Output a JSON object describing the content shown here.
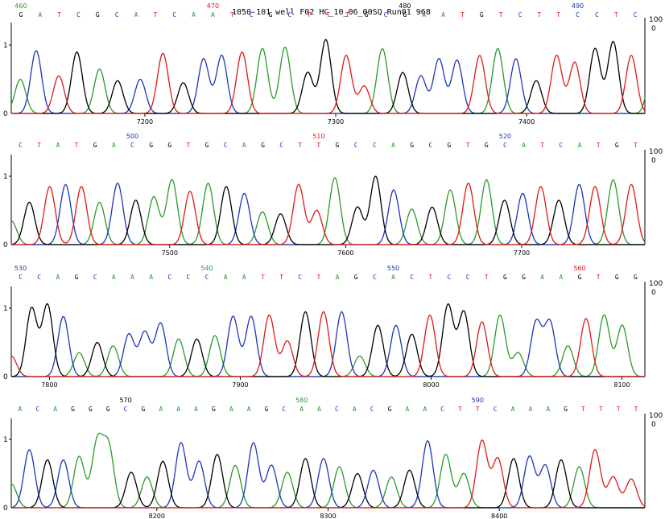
{
  "title": "1050-101 well F02 HC_10_06_00SQ Run01 968",
  "colors": {
    "A": "#2a9a2a",
    "C": "#1c36b8",
    "G": "#000000",
    "T": "#e01818"
  },
  "chart_data": {
    "type": "line",
    "title": "1050-101 well F02 HC_10_06_00SQ Run01 968",
    "series_names": [
      "A",
      "C",
      "G",
      "T"
    ],
    "left_axis_ticks": [
      "0",
      "1"
    ],
    "right_axis_ticks": [
      "0",
      "100"
    ],
    "panels": [
      {
        "sequence": "GATCGCATCAATCGCTTTGCGAATGTCTTCCTC",
        "position_labels": [
          {
            "value": "460",
            "base_index": 0,
            "color": "#2a9a2a"
          },
          {
            "value": "470",
            "base_index": 10,
            "color": "#e01818"
          },
          {
            "value": "480",
            "base_index": 20,
            "color": "#000000"
          },
          {
            "value": "490",
            "base_index": 29,
            "color": "#1c36b8"
          }
        ],
        "scan_range": [
          7130,
          7462
        ],
        "scan_ticks": [
          7200,
          7300,
          7400
        ],
        "peaks": [
          {
            "b": "A",
            "h": 0.5,
            "x": 0.02
          },
          {
            "b": "C",
            "h": 0.92,
            "x": 0.055
          },
          {
            "b": "T",
            "h": 0.55,
            "x": 0.105
          },
          {
            "b": "G",
            "h": 0.9,
            "x": 0.145
          },
          {
            "b": "A",
            "h": 0.65,
            "x": 0.195
          },
          {
            "b": "G",
            "h": 0.48,
            "x": 0.235
          },
          {
            "b": "C",
            "h": 0.5,
            "x": 0.285
          },
          {
            "b": "T",
            "h": 0.88,
            "x": 0.335
          },
          {
            "b": "G",
            "h": 0.45,
            "x": 0.38
          },
          {
            "b": "C",
            "h": 0.8,
            "x": 0.425
          },
          {
            "b": "C",
            "h": 0.85,
            "x": 0.465
          },
          {
            "b": "T",
            "h": 0.9,
            "x": 0.51
          },
          {
            "b": "A",
            "h": 0.95,
            "x": 0.555
          },
          {
            "b": "A",
            "h": 0.97,
            "x": 0.605
          },
          {
            "b": "G",
            "h": 0.6,
            "x": 0.655
          },
          {
            "b": "G",
            "h": 1.08,
            "x": 0.695
          },
          {
            "b": "T",
            "h": 0.85,
            "x": 0.74
          },
          {
            "b": "T",
            "h": 0.4,
            "x": 0.78
          },
          {
            "b": "A",
            "h": 0.95,
            "x": 0.82
          },
          {
            "b": "G",
            "h": 0.6,
            "x": 0.865
          },
          {
            "b": "C",
            "h": 0.55,
            "x": 0.905
          },
          {
            "b": "C",
            "h": 0.8,
            "x": 0.945
          },
          {
            "b": "C",
            "h": 0.78,
            "x": 0.985
          },
          {
            "b": "T",
            "h": 0.85,
            "x": 1.035
          },
          {
            "b": "A",
            "h": 0.95,
            "x": 1.075
          },
          {
            "b": "C",
            "h": 0.8,
            "x": 1.115
          },
          {
            "b": "G",
            "h": 0.48,
            "x": 1.16
          },
          {
            "b": "T",
            "h": 0.85,
            "x": 1.205
          },
          {
            "b": "T",
            "h": 0.75,
            "x": 1.245
          },
          {
            "b": "G",
            "h": 0.95,
            "x": 1.29
          },
          {
            "b": "G",
            "h": 1.05,
            "x": 1.33
          },
          {
            "b": "T",
            "h": 0.85,
            "x": 1.37
          },
          {
            "b": "A",
            "h": 0.93,
            "x": 1.42
          },
          {
            "b": "A",
            "h": 0.5,
            "x": 1.47
          }
        ]
      },
      {
        "sequence": "CTATGACGGTGCAGCTTGCCAGCGTGCATCATGT",
        "position_labels": [
          {
            "value": "500",
            "base_index": 6,
            "color": "#1c36b8"
          },
          {
            "value": "510",
            "base_index": 16,
            "color": "#e01818"
          },
          {
            "value": "520",
            "base_index": 26,
            "color": "#1c36b8"
          }
        ],
        "scan_range": [
          7410,
          7770
        ],
        "scan_ticks": [
          7500,
          7600,
          7700
        ],
        "peaks": [
          {
            "b": "A",
            "h": 0.35,
            "x": 0.0
          },
          {
            "b": "G",
            "h": 0.62,
            "x": 0.04
          },
          {
            "b": "T",
            "h": 0.85,
            "x": 0.085
          },
          {
            "b": "C",
            "h": 0.88,
            "x": 0.12
          },
          {
            "b": "T",
            "h": 0.85,
            "x": 0.155
          },
          {
            "b": "A",
            "h": 0.62,
            "x": 0.195
          },
          {
            "b": "C",
            "h": 0.9,
            "x": 0.235
          },
          {
            "b": "G",
            "h": 0.65,
            "x": 0.275
          },
          {
            "b": "A",
            "h": 0.7,
            "x": 0.315
          },
          {
            "b": "A",
            "h": 0.95,
            "x": 0.355
          },
          {
            "b": "T",
            "h": 0.78,
            "x": 0.395
          },
          {
            "b": "A",
            "h": 0.9,
            "x": 0.435
          },
          {
            "b": "G",
            "h": 0.85,
            "x": 0.475
          },
          {
            "b": "C",
            "h": 0.75,
            "x": 0.515
          },
          {
            "b": "A",
            "h": 0.48,
            "x": 0.555
          },
          {
            "b": "G",
            "h": 0.45,
            "x": 0.595
          },
          {
            "b": "T",
            "h": 0.88,
            "x": 0.635
          },
          {
            "b": "T",
            "h": 0.5,
            "x": 0.675
          },
          {
            "b": "A",
            "h": 0.98,
            "x": 0.715
          },
          {
            "b": "G",
            "h": 0.55,
            "x": 0.765
          },
          {
            "b": "G",
            "h": 1.0,
            "x": 0.805
          },
          {
            "b": "C",
            "h": 0.8,
            "x": 0.845
          },
          {
            "b": "A",
            "h": 0.52,
            "x": 0.885
          },
          {
            "b": "G",
            "h": 0.55,
            "x": 0.93
          },
          {
            "b": "A",
            "h": 0.8,
            "x": 0.97
          },
          {
            "b": "T",
            "h": 0.9,
            "x": 1.01
          },
          {
            "b": "A",
            "h": 0.95,
            "x": 1.05
          },
          {
            "b": "G",
            "h": 0.65,
            "x": 1.09
          },
          {
            "b": "C",
            "h": 0.75,
            "x": 1.13
          },
          {
            "b": "T",
            "h": 0.85,
            "x": 1.17
          },
          {
            "b": "G",
            "h": 0.65,
            "x": 1.21
          },
          {
            "b": "C",
            "h": 0.88,
            "x": 1.255
          },
          {
            "b": "T",
            "h": 0.85,
            "x": 1.29
          },
          {
            "b": "A",
            "h": 0.95,
            "x": 1.33
          },
          {
            "b": "T",
            "h": 0.88,
            "x": 1.37
          }
        ]
      },
      {
        "sequence": "CCAGCAAACCCAATTCTAGCACTCCTGGAAGTGG",
        "position_labels": [
          {
            "value": "530",
            "base_index": 0,
            "color": "#1c36b8"
          },
          {
            "value": "540",
            "base_index": 10,
            "color": "#2a9a2a"
          },
          {
            "value": "550",
            "base_index": 20,
            "color": "#1c36b8"
          },
          {
            "value": "560",
            "base_index": 30,
            "color": "#e01818"
          }
        ],
        "scan_range": [
          7780,
          8112
        ],
        "scan_ticks": [
          7800,
          7900,
          8000,
          8100
        ],
        "peaks": [
          {
            "b": "T",
            "h": 0.3,
            "x": 0.0
          },
          {
            "b": "G",
            "h": 1.0,
            "x": 0.045
          },
          {
            "b": "G",
            "h": 1.05,
            "x": 0.08
          },
          {
            "b": "C",
            "h": 0.88,
            "x": 0.115
          },
          {
            "b": "A",
            "h": 0.35,
            "x": 0.15
          },
          {
            "b": "G",
            "h": 0.5,
            "x": 0.19
          },
          {
            "b": "A",
            "h": 0.45,
            "x": 0.225
          },
          {
            "b": "C",
            "h": 0.62,
            "x": 0.26
          },
          {
            "b": "C",
            "h": 0.65,
            "x": 0.295
          },
          {
            "b": "C",
            "h": 0.78,
            "x": 0.33
          },
          {
            "b": "A",
            "h": 0.55,
            "x": 0.37
          },
          {
            "b": "G",
            "h": 0.55,
            "x": 0.41
          },
          {
            "b": "A",
            "h": 0.6,
            "x": 0.45
          },
          {
            "b": "C",
            "h": 0.88,
            "x": 0.49
          },
          {
            "b": "C",
            "h": 0.88,
            "x": 0.53
          },
          {
            "b": "T",
            "h": 0.9,
            "x": 0.57
          },
          {
            "b": "T",
            "h": 0.52,
            "x": 0.61
          },
          {
            "b": "G",
            "h": 0.95,
            "x": 0.65
          },
          {
            "b": "T",
            "h": 0.95,
            "x": 0.69
          },
          {
            "b": "C",
            "h": 0.95,
            "x": 0.73
          },
          {
            "b": "A",
            "h": 0.3,
            "x": 0.77
          },
          {
            "b": "G",
            "h": 0.75,
            "x": 0.81
          },
          {
            "b": "C",
            "h": 0.75,
            "x": 0.85
          },
          {
            "b": "G",
            "h": 0.62,
            "x": 0.885
          },
          {
            "b": "T",
            "h": 0.9,
            "x": 0.925
          },
          {
            "b": "G",
            "h": 1.05,
            "x": 0.965
          },
          {
            "b": "G",
            "h": 0.95,
            "x": 1.0
          },
          {
            "b": "T",
            "h": 0.8,
            "x": 1.04
          },
          {
            "b": "A",
            "h": 0.9,
            "x": 1.08
          },
          {
            "b": "A",
            "h": 0.35,
            "x": 1.12
          },
          {
            "b": "C",
            "h": 0.8,
            "x": 1.16
          },
          {
            "b": "C",
            "h": 0.8,
            "x": 1.19
          },
          {
            "b": "A",
            "h": 0.45,
            "x": 1.23
          },
          {
            "b": "T",
            "h": 0.85,
            "x": 1.27
          },
          {
            "b": "A",
            "h": 0.9,
            "x": 1.31
          },
          {
            "b": "A",
            "h": 0.75,
            "x": 1.35
          }
        ]
      },
      {
        "sequence": "ACAGGGCGAAAGAAGCAACACGAACTTCAAAGTTTT",
        "position_labels": [
          {
            "value": "570",
            "base_index": 6,
            "color": "#000000"
          },
          {
            "value": "580",
            "base_index": 16,
            "color": "#2a9a2a"
          },
          {
            "value": "590",
            "base_index": 26,
            "color": "#1c36b8"
          }
        ],
        "scan_range": [
          8115,
          8485
        ],
        "scan_ticks": [
          8200,
          8300,
          8400
        ],
        "peaks": [
          {
            "b": "A",
            "h": 0.35,
            "x": 0.0
          },
          {
            "b": "C",
            "h": 0.85,
            "x": 0.04
          },
          {
            "b": "G",
            "h": 0.7,
            "x": 0.08
          },
          {
            "b": "C",
            "h": 0.7,
            "x": 0.115
          },
          {
            "b": "A",
            "h": 0.75,
            "x": 0.15
          },
          {
            "b": "A",
            "h": 0.95,
            "x": 0.19
          },
          {
            "b": "A",
            "h": 0.88,
            "x": 0.215
          },
          {
            "b": "G",
            "h": 0.52,
            "x": 0.265
          },
          {
            "b": "A",
            "h": 0.45,
            "x": 0.3
          },
          {
            "b": "G",
            "h": 0.68,
            "x": 0.335
          },
          {
            "b": "C",
            "h": 0.95,
            "x": 0.375
          },
          {
            "b": "C",
            "h": 0.68,
            "x": 0.415
          },
          {
            "b": "G",
            "h": 0.78,
            "x": 0.455
          },
          {
            "b": "A",
            "h": 0.62,
            "x": 0.495
          },
          {
            "b": "C",
            "h": 0.95,
            "x": 0.535
          },
          {
            "b": "C",
            "h": 0.62,
            "x": 0.575
          },
          {
            "b": "A",
            "h": 0.52,
            "x": 0.61
          },
          {
            "b": "G",
            "h": 0.72,
            "x": 0.65
          },
          {
            "b": "C",
            "h": 0.72,
            "x": 0.69
          },
          {
            "b": "A",
            "h": 0.6,
            "x": 0.725
          },
          {
            "b": "G",
            "h": 0.5,
            "x": 0.765
          },
          {
            "b": "C",
            "h": 0.55,
            "x": 0.8
          },
          {
            "b": "A",
            "h": 0.45,
            "x": 0.84
          },
          {
            "b": "G",
            "h": 0.55,
            "x": 0.88
          },
          {
            "b": "C",
            "h": 0.98,
            "x": 0.92
          },
          {
            "b": "A",
            "h": 0.78,
            "x": 0.96
          },
          {
            "b": "A",
            "h": 0.5,
            "x": 1.0
          },
          {
            "b": "T",
            "h": 0.98,
            "x": 1.04
          },
          {
            "b": "T",
            "h": 0.72,
            "x": 1.075
          },
          {
            "b": "G",
            "h": 0.72,
            "x": 1.11
          },
          {
            "b": "C",
            "h": 0.75,
            "x": 1.145
          },
          {
            "b": "C",
            "h": 0.62,
            "x": 1.18
          },
          {
            "b": "G",
            "h": 0.7,
            "x": 1.215
          },
          {
            "b": "A",
            "h": 0.6,
            "x": 1.255
          },
          {
            "b": "T",
            "h": 0.85,
            "x": 1.29
          },
          {
            "b": "T",
            "h": 0.45,
            "x": 1.33
          },
          {
            "b": "T",
            "h": 0.42,
            "x": 1.37
          }
        ]
      }
    ]
  }
}
